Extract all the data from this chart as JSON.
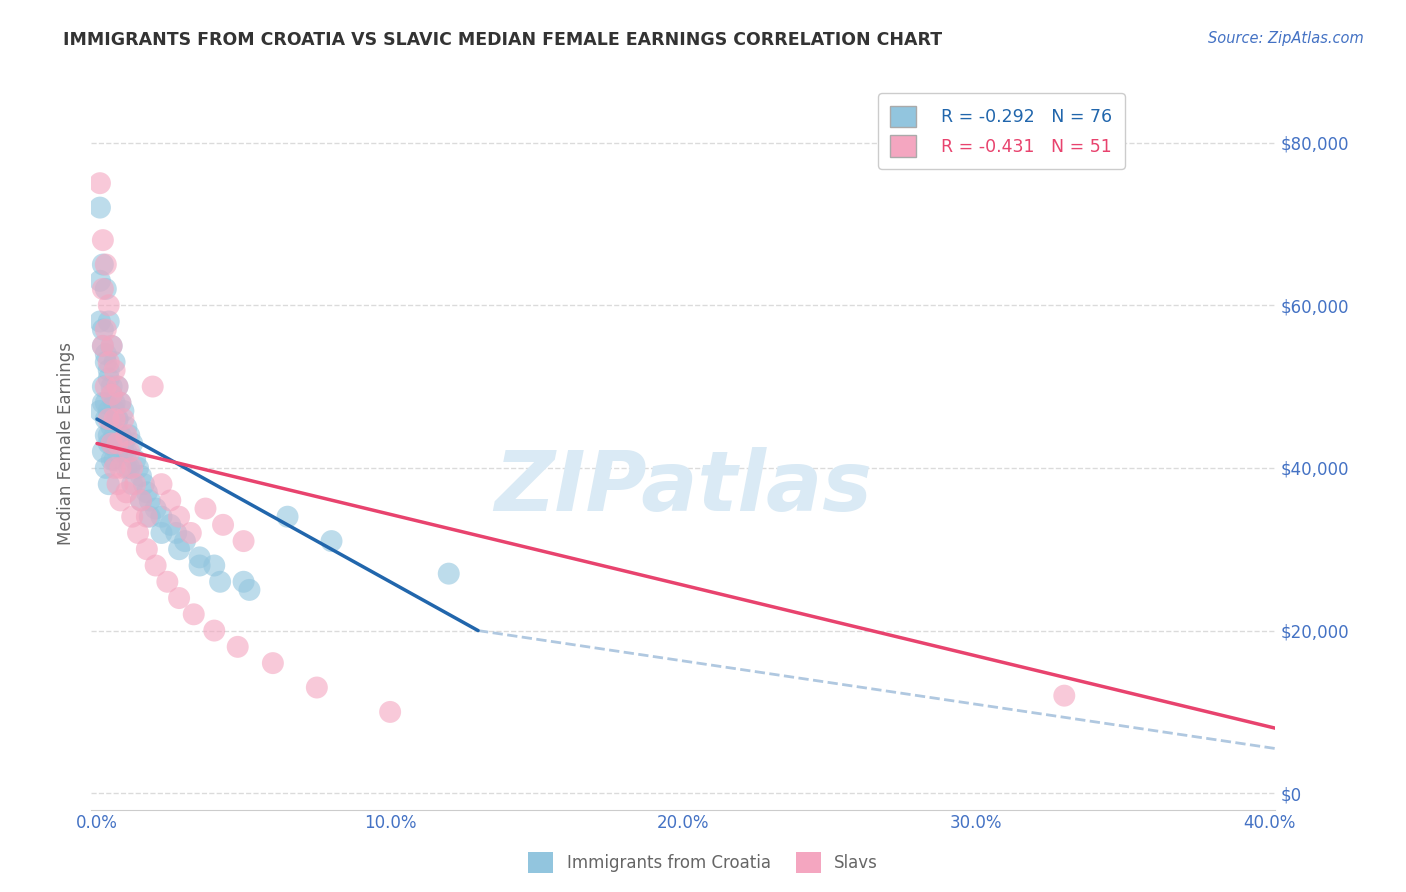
{
  "title": "IMMIGRANTS FROM CROATIA VS SLAVIC MEDIAN FEMALE EARNINGS CORRELATION CHART",
  "source": "Source: ZipAtlas.com",
  "ylabel": "Median Female Earnings",
  "xlim": [
    -0.002,
    0.402
  ],
  "ylim": [
    -2000,
    88000
  ],
  "yticks": [
    0,
    20000,
    40000,
    60000,
    80000
  ],
  "ytick_labels": [
    "$0",
    "$20,000",
    "$40,000",
    "$60,000",
    "$80,000"
  ],
  "xticks": [
    0.0,
    0.1,
    0.2,
    0.3,
    0.4
  ],
  "xtick_labels": [
    "0.0%",
    "10.0%",
    "20.0%",
    "30.0%",
    "40.0%"
  ],
  "legend_r1": "R = -0.292",
  "legend_n1": "N = 76",
  "legend_r2": "R = -0.431",
  "legend_n2": "N = 51",
  "blue_color": "#92c5de",
  "pink_color": "#f4a6c0",
  "blue_line_color": "#2166ac",
  "pink_line_color": "#e8436e",
  "trend_dash_color": "#b0c8e0",
  "background_color": "#ffffff",
  "grid_color": "#cccccc",
  "title_color": "#333333",
  "source_color": "#4472c4",
  "axis_label_color": "#666666",
  "tick_label_color": "#4472c4",
  "watermark_color": "#daeaf5",
  "blue_scatter_x": [
    0.001,
    0.001,
    0.001,
    0.002,
    0.002,
    0.002,
    0.002,
    0.003,
    0.003,
    0.003,
    0.003,
    0.003,
    0.004,
    0.004,
    0.004,
    0.004,
    0.004,
    0.005,
    0.005,
    0.005,
    0.005,
    0.006,
    0.006,
    0.006,
    0.007,
    0.007,
    0.007,
    0.008,
    0.008,
    0.009,
    0.009,
    0.01,
    0.01,
    0.011,
    0.011,
    0.012,
    0.013,
    0.014,
    0.015,
    0.016,
    0.017,
    0.018,
    0.02,
    0.022,
    0.025,
    0.027,
    0.03,
    0.035,
    0.04,
    0.05,
    0.001,
    0.002,
    0.002,
    0.003,
    0.003,
    0.004,
    0.004,
    0.005,
    0.005,
    0.006,
    0.006,
    0.007,
    0.008,
    0.009,
    0.01,
    0.012,
    0.015,
    0.018,
    0.022,
    0.028,
    0.035,
    0.042,
    0.052,
    0.065,
    0.08,
    0.12
  ],
  "blue_scatter_y": [
    72000,
    58000,
    47000,
    65000,
    55000,
    48000,
    42000,
    62000,
    54000,
    48000,
    44000,
    40000,
    58000,
    52000,
    47000,
    43000,
    38000,
    55000,
    50000,
    45000,
    41000,
    53000,
    48000,
    44000,
    50000,
    46000,
    42000,
    48000,
    44000,
    47000,
    43000,
    45000,
    42000,
    44000,
    40000,
    43000,
    41000,
    40000,
    39000,
    38000,
    37000,
    36000,
    35000,
    34000,
    33000,
    32000,
    31000,
    29000,
    28000,
    26000,
    63000,
    57000,
    50000,
    53000,
    46000,
    51000,
    44000,
    49000,
    43000,
    47000,
    41000,
    46000,
    44000,
    42000,
    40000,
    38000,
    36000,
    34000,
    32000,
    30000,
    28000,
    26000,
    25000,
    34000,
    31000,
    27000
  ],
  "pink_scatter_x": [
    0.001,
    0.002,
    0.002,
    0.003,
    0.003,
    0.004,
    0.004,
    0.005,
    0.005,
    0.006,
    0.006,
    0.007,
    0.007,
    0.008,
    0.008,
    0.009,
    0.01,
    0.011,
    0.012,
    0.013,
    0.015,
    0.017,
    0.019,
    0.022,
    0.025,
    0.028,
    0.032,
    0.037,
    0.043,
    0.05,
    0.002,
    0.003,
    0.004,
    0.005,
    0.006,
    0.007,
    0.008,
    0.01,
    0.012,
    0.014,
    0.017,
    0.02,
    0.024,
    0.028,
    0.033,
    0.04,
    0.048,
    0.06,
    0.075,
    0.1,
    0.33
  ],
  "pink_scatter_y": [
    75000,
    68000,
    55000,
    65000,
    50000,
    60000,
    46000,
    55000,
    43000,
    52000,
    40000,
    50000,
    38000,
    48000,
    36000,
    46000,
    44000,
    42000,
    40000,
    38000,
    36000,
    34000,
    50000,
    38000,
    36000,
    34000,
    32000,
    35000,
    33000,
    31000,
    62000,
    57000,
    53000,
    49000,
    46000,
    43000,
    40000,
    37000,
    34000,
    32000,
    30000,
    28000,
    26000,
    24000,
    22000,
    20000,
    18000,
    16000,
    13000,
    10000,
    12000
  ],
  "blue_trend_x": [
    0.0,
    0.13
  ],
  "blue_trend_y": [
    46000,
    20000
  ],
  "pink_trend_x": [
    0.0,
    0.402
  ],
  "pink_trend_y": [
    43000,
    8000
  ],
  "dash_trend_x": [
    0.13,
    0.402
  ],
  "dash_trend_y": [
    20000,
    5500
  ]
}
